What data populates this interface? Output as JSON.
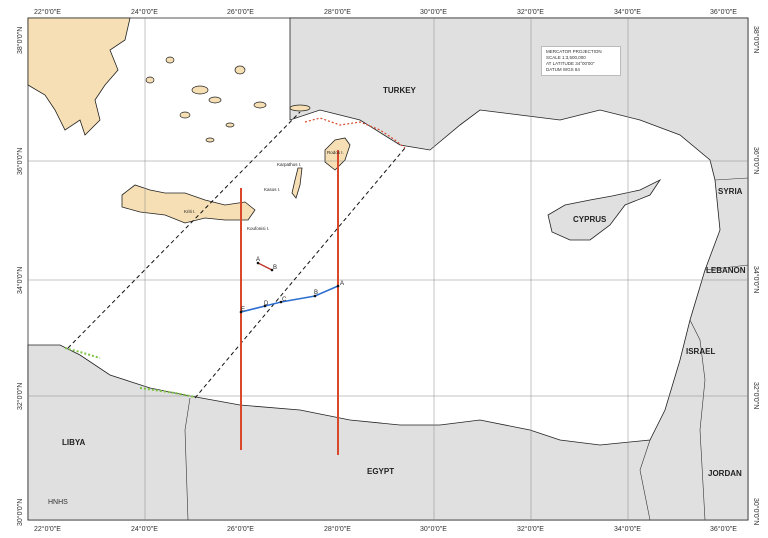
{
  "info_box": [
    "MERCATOR PROJECTION",
    "SCALE 1:3,500,000",
    "AT LATITUDE 34°00'00\"",
    "DATUM WGS 84"
  ],
  "lon_labels": [
    "22°0'0\"E",
    "24°0'0\"E",
    "26°0'0\"E",
    "28°0'0\"E",
    "30°0'0\"E",
    "32°0'0\"E",
    "34°0'0\"E",
    "36°0'0\"E"
  ],
  "lat_labels": [
    "38°0'0\"N",
    "36°0'0\"N",
    "34°0'0\"N",
    "32°0'0\"N",
    "30°0'0\"N"
  ],
  "countries": {
    "turkey": "TURKEY",
    "cyprus": "CYPRUS",
    "syria": "SYRIA",
    "lebanon": "LEBANON",
    "israel": "ISRAEL",
    "jordan": "JORDAN",
    "egypt": "EGYPT",
    "libya": "LIBYA"
  },
  "islands": {
    "kriti": "Kriti I.",
    "kasos": "Kasos I.",
    "karpathos": "Karpathos I.",
    "rodos": "Rodos I.",
    "koufonisi": "Koufonisi I."
  },
  "points": {
    "a": "A",
    "b": "B",
    "c": "C",
    "d": "D",
    "e": "E",
    "a2": "A",
    "b2": "B"
  },
  "credit": "HNHS",
  "colors": {
    "greek_land": "#f6dfb4",
    "other_land": "#e0e0e0",
    "sea": "#ffffff",
    "meridian_lines": "#d9482b",
    "blue_line": "#2d6fd1",
    "coast_points": "#7dc242"
  }
}
